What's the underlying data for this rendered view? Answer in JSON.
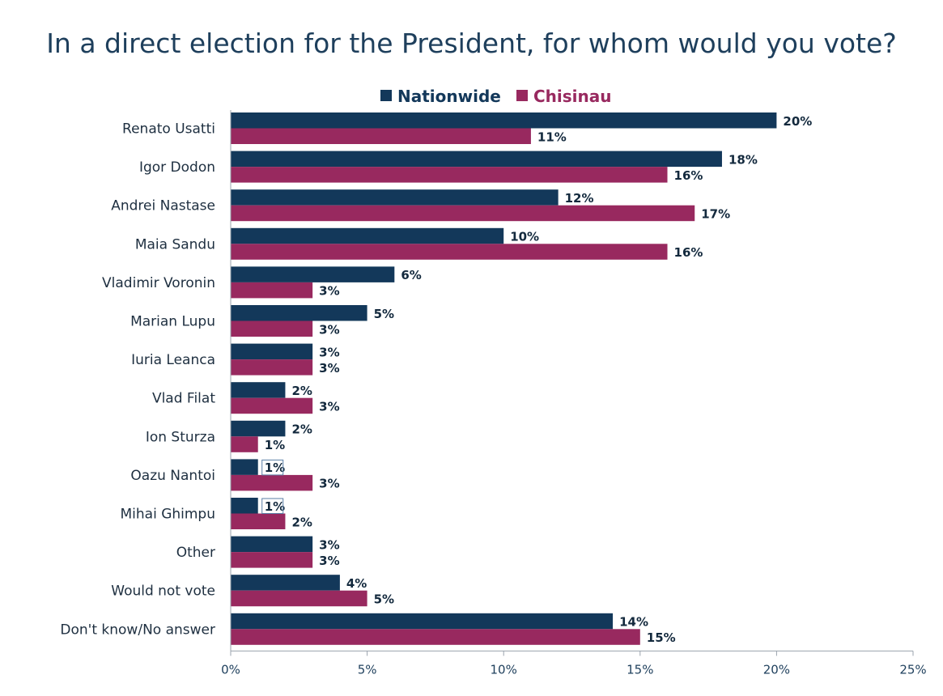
{
  "title": "In a direct election for the President, for whom would you vote?",
  "colors": {
    "nationwide": "#13385a",
    "chisinau": "#98295f",
    "title": "#1e3f5c",
    "axis": "#9aa3ad"
  },
  "chart_data": {
    "type": "bar",
    "orientation": "horizontal",
    "title": "In a direct election for the President, for whom would you vote?",
    "categories": [
      "Renato Usatti",
      "Igor Dodon",
      "Andrei Nastase",
      "Maia Sandu",
      "Vladimir Voronin",
      "Marian Lupu",
      "Iuria Leanca",
      "Vlad Filat",
      "Ion Sturza",
      "Oazu Nantoi",
      "Mihai Ghimpu",
      "Other",
      "Would not vote",
      "Don't know/No answer"
    ],
    "series": [
      {
        "name": "Nationwide",
        "color": "#13385a",
        "values": [
          20,
          18,
          12,
          10,
          6,
          5,
          3,
          2,
          2,
          1,
          1,
          3,
          4,
          14
        ]
      },
      {
        "name": "Chisinau",
        "color": "#98295f",
        "values": [
          11,
          16,
          17,
          16,
          3,
          3,
          3,
          3,
          1,
          3,
          2,
          3,
          5,
          15
        ]
      }
    ],
    "xlim": [
      0,
      25
    ],
    "xticks": [
      0,
      5,
      10,
      15,
      20,
      25
    ],
    "tick_format": "{v}%",
    "value_format": "{v}%",
    "boxed_labels": [
      {
        "series": 0,
        "category": 9
      },
      {
        "series": 0,
        "category": 10
      }
    ],
    "legend_position": "top-center",
    "grid": false
  }
}
